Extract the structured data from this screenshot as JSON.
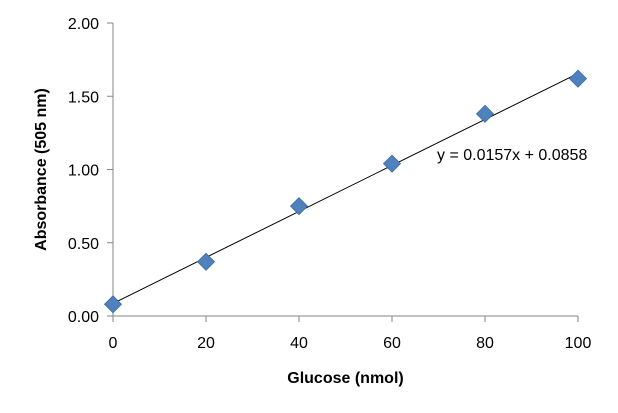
{
  "chart_data": {
    "type": "scatter",
    "xlabel": "Glucose (nmol)",
    "ylabel": "Absorbance (505 nm)",
    "xlim": [
      0,
      100
    ],
    "ylim": [
      0,
      2.0
    ],
    "x_ticks": [
      0,
      20,
      40,
      60,
      80,
      100
    ],
    "y_ticks": [
      0,
      0.5,
      1.0,
      1.5,
      2.0
    ],
    "x_tick_labels": [
      "0",
      "20",
      "40",
      "60",
      "80",
      "100"
    ],
    "y_tick_labels": [
      "0.00",
      "0.50",
      "1.00",
      "1.50",
      "2.00"
    ],
    "grid": false,
    "legend": "none",
    "series": [
      {
        "x": [
          0,
          20,
          40,
          60,
          80,
          100
        ],
        "y": [
          0.08,
          0.37,
          0.75,
          1.04,
          1.38,
          1.62
        ],
        "marker": "diamond",
        "color": "#4F81BD"
      }
    ],
    "trendline": {
      "type": "linear",
      "slope": 0.0157,
      "intercept": 0.0858,
      "color": "#000000",
      "equation_label": "y = 0.0157x + 0.0858"
    }
  }
}
